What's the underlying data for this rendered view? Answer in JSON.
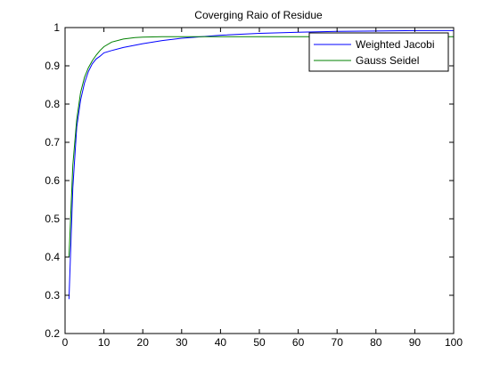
{
  "chart_data": {
    "type": "line",
    "title": "Coverging Raio of Residue",
    "xlabel": "",
    "ylabel": "",
    "xlim": [
      0,
      100
    ],
    "ylim": [
      0.2,
      1
    ],
    "x_ticks": [
      0,
      10,
      20,
      30,
      40,
      50,
      60,
      70,
      80,
      90,
      100
    ],
    "y_ticks": [
      0.2,
      0.3,
      0.4,
      0.5,
      0.6,
      0.7,
      0.8,
      0.9,
      1
    ],
    "x_tick_labels": [
      "0",
      "10",
      "20",
      "30",
      "40",
      "50",
      "60",
      "70",
      "80",
      "90",
      "100"
    ],
    "y_tick_labels": [
      "0.2",
      "0.3",
      "0.4",
      "0.5",
      "0.6",
      "0.7",
      "0.8",
      "0.9",
      "1"
    ],
    "grid": false,
    "legend_position": "top-right",
    "series": [
      {
        "name": "Weighted Jacobi",
        "color": "#0000ff",
        "x": [
          1,
          2,
          3,
          4,
          5,
          6,
          7,
          8,
          9,
          10,
          12,
          15,
          20,
          25,
          30,
          40,
          50,
          60,
          70,
          80,
          90,
          100
        ],
        "y": [
          0.29,
          0.58,
          0.74,
          0.81,
          0.855,
          0.885,
          0.905,
          0.918,
          0.925,
          0.934,
          0.94,
          0.948,
          0.958,
          0.966,
          0.972,
          0.98,
          0.985,
          0.988,
          0.99,
          0.991,
          0.992,
          0.992
        ]
      },
      {
        "name": "Gauss Seidel",
        "color": "#008000",
        "x": [
          1,
          2,
          3,
          4,
          5,
          6,
          7,
          8,
          9,
          10,
          12,
          15,
          18,
          20,
          25,
          30,
          40,
          50,
          60,
          70,
          80,
          90,
          100
        ],
        "y": [
          0.4,
          0.64,
          0.76,
          0.83,
          0.87,
          0.895,
          0.913,
          0.928,
          0.94,
          0.95,
          0.962,
          0.97,
          0.974,
          0.975,
          0.976,
          0.976,
          0.976,
          0.976,
          0.976,
          0.976,
          0.976,
          0.976,
          0.976
        ]
      }
    ]
  }
}
